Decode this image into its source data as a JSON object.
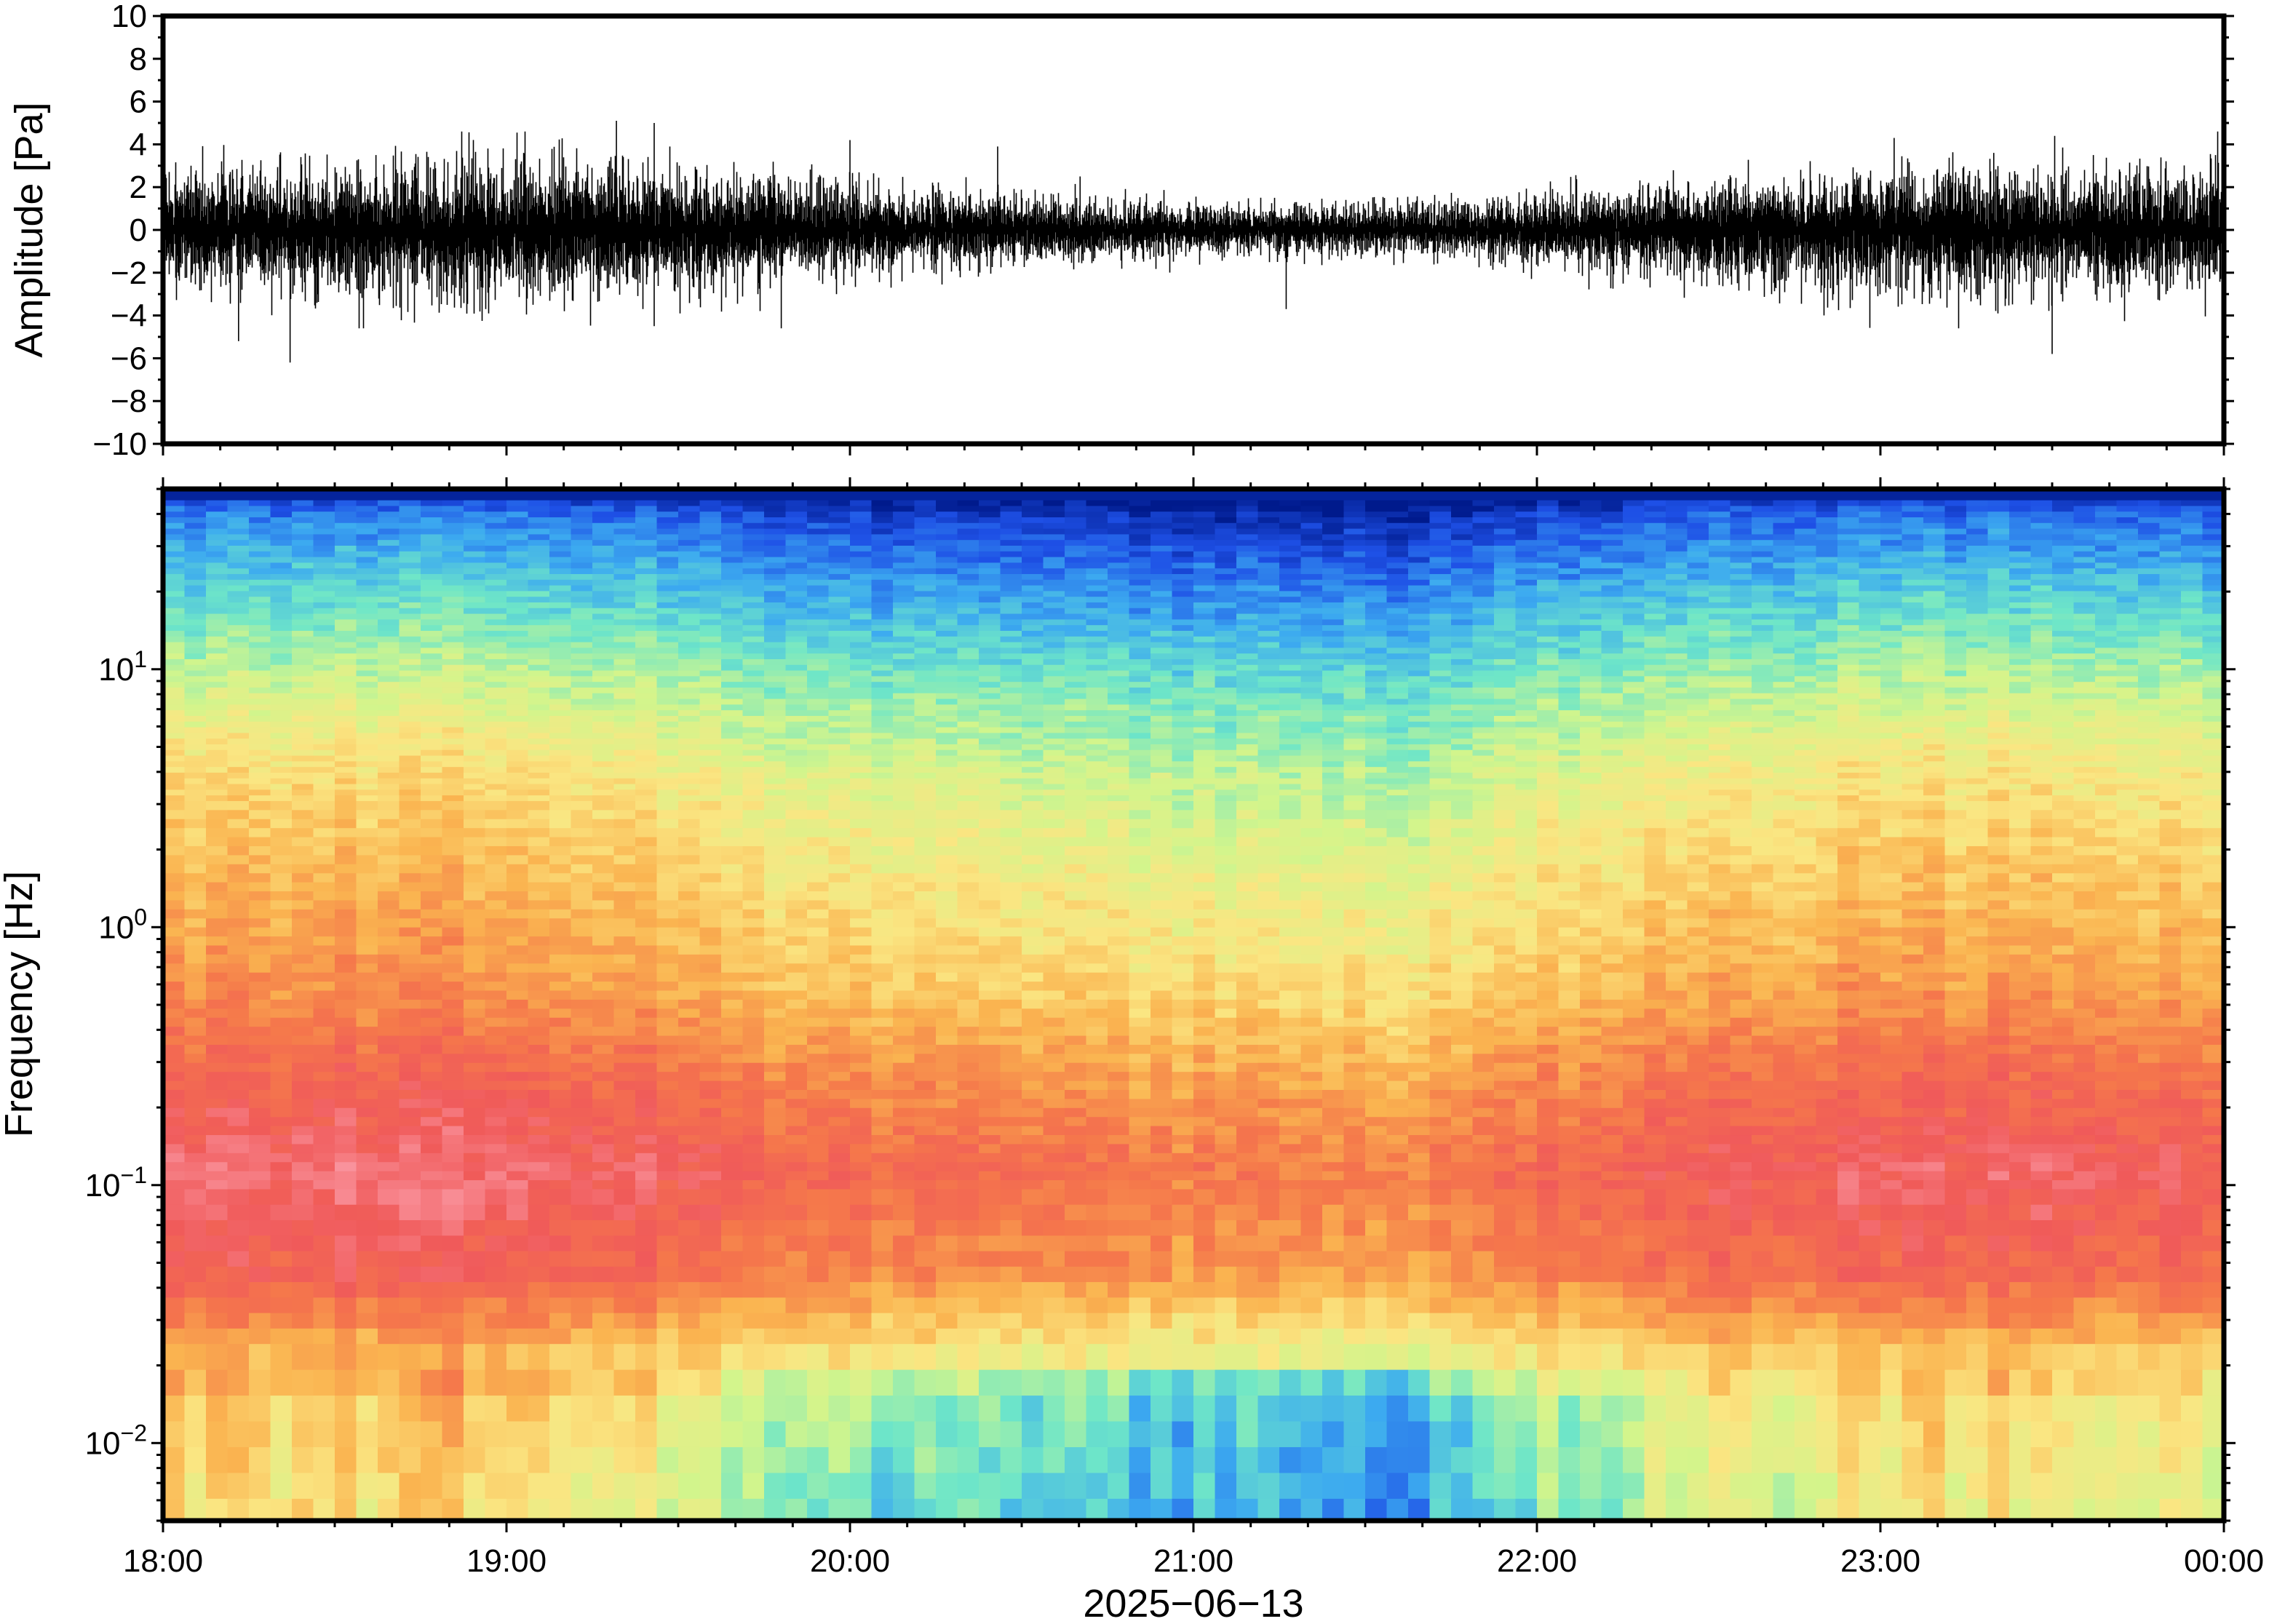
{
  "chart_data": [
    {
      "type": "line",
      "panel": "waveform",
      "ylabel": "Amplitude [Pa]",
      "ylim": [
        -10,
        10
      ],
      "y_ticks": [
        10,
        8,
        6,
        4,
        2,
        0,
        -2,
        -4,
        -6,
        -8,
        -10
      ],
      "y_tick_labels": [
        "10",
        "8",
        "6",
        "4",
        "2",
        "0",
        "−2",
        "−4",
        "−6",
        "−8",
        "−10"
      ],
      "xlim": [
        "18:00",
        "00:00"
      ],
      "envelope_hours": [
        0.0,
        0.25,
        0.5,
        0.75,
        1.0,
        1.25,
        1.5,
        1.75,
        2.0,
        2.25,
        2.5,
        2.75,
        3.0,
        3.25,
        3.5,
        3.75,
        4.0,
        4.25,
        4.5,
        4.75,
        5.0,
        5.25,
        5.5,
        5.75,
        6.0
      ],
      "envelope_amplitude": [
        2.3,
        2.5,
        2.5,
        2.6,
        2.8,
        2.5,
        2.3,
        2.1,
        1.8,
        1.5,
        1.3,
        1.1,
        1.0,
        1.0,
        1.0,
        1.1,
        1.3,
        1.6,
        1.9,
        2.1,
        2.4,
        2.6,
        2.5,
        2.4,
        2.3
      ],
      "spikes": [
        {
          "hour": 0.22,
          "value": -5.2
        },
        {
          "hour": 0.37,
          "value": -6.2
        },
        {
          "hour": 0.62,
          "value": 3.5
        },
        {
          "hour": 1.05,
          "value": 3.6
        },
        {
          "hour": 1.32,
          "value": 5.1
        },
        {
          "hour": 1.43,
          "value": 5.0
        },
        {
          "hour": 1.43,
          "value": -4.5
        },
        {
          "hour": 1.8,
          "value": -4.6
        },
        {
          "hour": 2.0,
          "value": 4.2
        },
        {
          "hour": 2.43,
          "value": 3.9
        },
        {
          "hour": 2.67,
          "value": 2.5
        },
        {
          "hour": 3.27,
          "value": -3.7
        },
        {
          "hour": 5.04,
          "value": 4.3
        },
        {
          "hour": 5.33,
          "value": 3.6
        },
        {
          "hour": 5.5,
          "value": -5.8
        },
        {
          "hour": 5.62,
          "value": 3.5
        }
      ]
    },
    {
      "type": "heatmap",
      "panel": "spectrogram",
      "ylabel": "Frequency [Hz]",
      "y_scale": "log",
      "ylim": [
        0.005,
        50
      ],
      "y_ticks": [
        0.01,
        0.1,
        1,
        10
      ],
      "y_tick_labels": [
        {
          "base": "10",
          "exp": "−2"
        },
        {
          "base": "10",
          "exp": "−1"
        },
        {
          "base": "10",
          "exp": "0"
        },
        {
          "base": "10",
          "exp": "1"
        }
      ],
      "xlim": [
        "18:00",
        "00:00"
      ],
      "xlabel": "2025−06−13",
      "x_ticks": [
        "18:00",
        "19:00",
        "20:00",
        "21:00",
        "22:00",
        "23:00",
        "00:00"
      ],
      "x_minor_ticks_per_hour": 6,
      "colormap": [
        "#001a8c",
        "#1e50e6",
        "#3caaf0",
        "#6ee6c8",
        "#d2f58c",
        "#fae682",
        "#fab450",
        "#f5784b",
        "#f05a5a",
        "#fa96a0"
      ],
      "frequency_profile": [
        {
          "log10_f": 1.7,
          "level": 0.0
        },
        {
          "log10_f": 1.6,
          "level": 0.12
        },
        {
          "log10_f": 1.4,
          "level": 0.22
        },
        {
          "log10_f": 1.15,
          "level": 0.32
        },
        {
          "log10_f": 0.9,
          "level": 0.42
        },
        {
          "log10_f": 0.6,
          "level": 0.52
        },
        {
          "log10_f": 0.2,
          "level": 0.6
        },
        {
          "log10_f": -0.25,
          "level": 0.68
        },
        {
          "log10_f": -0.55,
          "level": 0.78
        },
        {
          "log10_f": -0.95,
          "level": 0.88
        },
        {
          "log10_f": -1.35,
          "level": 0.8
        },
        {
          "log10_f": -1.6,
          "level": 0.64
        },
        {
          "log10_f": -1.85,
          "level": 0.5
        },
        {
          "log10_f": -2.3,
          "level": 0.44
        }
      ],
      "time_activity": [
        {
          "hour": 0.0,
          "value": 0.05
        },
        {
          "hour": 1.0,
          "value": 0.06
        },
        {
          "hour": 2.0,
          "value": -0.05
        },
        {
          "hour": 3.0,
          "value": -0.1
        },
        {
          "hour": 3.6,
          "value": -0.12
        },
        {
          "hour": 4.0,
          "value": -0.04
        },
        {
          "hour": 5.0,
          "value": 0.04
        },
        {
          "hour": 6.0,
          "value": 0.02
        }
      ]
    }
  ]
}
